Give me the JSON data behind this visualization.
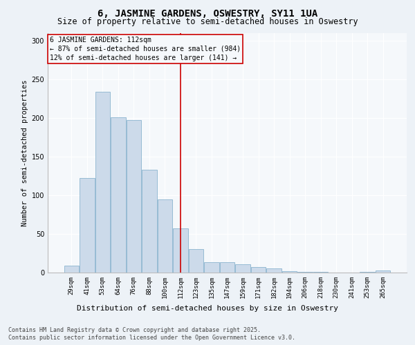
{
  "title1": "6, JASMINE GARDENS, OSWESTRY, SY11 1UA",
  "title2": "Size of property relative to semi-detached houses in Oswestry",
  "xlabel": "Distribution of semi-detached houses by size in Oswestry",
  "ylabel": "Number of semi-detached properties",
  "categories": [
    "29sqm",
    "41sqm",
    "53sqm",
    "64sqm",
    "76sqm",
    "88sqm",
    "100sqm",
    "112sqm",
    "123sqm",
    "135sqm",
    "147sqm",
    "159sqm",
    "171sqm",
    "182sqm",
    "194sqm",
    "206sqm",
    "218sqm",
    "230sqm",
    "241sqm",
    "253sqm",
    "265sqm"
  ],
  "values": [
    9,
    122,
    234,
    201,
    197,
    133,
    95,
    57,
    30,
    13,
    13,
    11,
    7,
    5,
    2,
    1,
    1,
    0,
    0,
    1,
    3
  ],
  "bar_color": "#ccdaea",
  "bar_edge_color": "#7aaac8",
  "highlight_index": 7,
  "annotation_title": "6 JASMINE GARDENS: 112sqm",
  "annotation_line1": "← 87% of semi-detached houses are smaller (984)",
  "annotation_line2": "12% of semi-detached houses are larger (141) →",
  "vline_color": "#cc0000",
  "annotation_box_color": "#cc0000",
  "ylim": [
    0,
    310
  ],
  "yticks": [
    0,
    50,
    100,
    150,
    200,
    250,
    300
  ],
  "footer_line1": "Contains HM Land Registry data © Crown copyright and database right 2025.",
  "footer_line2": "Contains public sector information licensed under the Open Government Licence v3.0.",
  "bg_color": "#edf2f7",
  "plot_bg_color": "#f5f8fb",
  "grid_color": "#ffffff",
  "title1_fontsize": 10,
  "title2_fontsize": 8.5,
  "ylabel_fontsize": 7.5,
  "xlabel_fontsize": 8,
  "tick_fontsize": 6.5,
  "annotation_fontsize": 7,
  "footer_fontsize": 6
}
